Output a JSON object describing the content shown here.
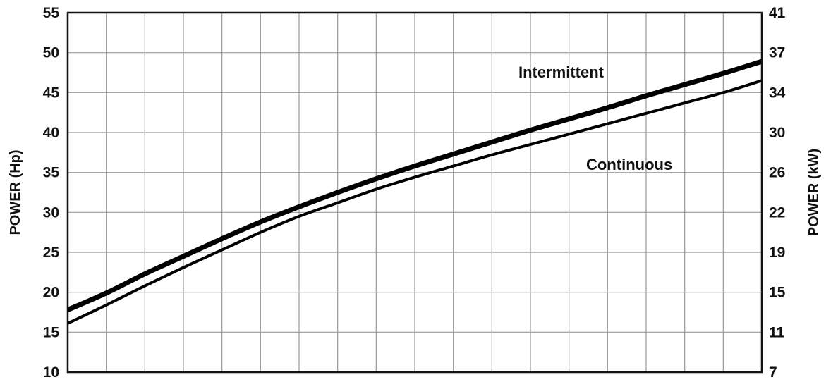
{
  "chart_data": {
    "type": "line",
    "title": "",
    "xlabel": "",
    "ylabel": "POWER (Hp)",
    "ylabel_right": "POWER (kW)",
    "ylim": [
      10,
      55
    ],
    "yticks_left": [
      "10",
      "15",
      "20",
      "25",
      "30",
      "35",
      "40",
      "45",
      "50",
      "55"
    ],
    "yticks_right": [
      "7",
      "11",
      "15",
      "19",
      "22",
      "26",
      "30",
      "34",
      "37",
      "41"
    ],
    "x_gridlines": 18,
    "grid": true,
    "series": [
      {
        "name": "Intermittent",
        "line_weight": "heavy",
        "color": "#000000",
        "x": [
          0,
          1,
          2,
          3,
          4,
          5,
          6,
          7,
          8,
          9,
          10,
          11,
          12,
          13,
          14,
          15,
          16,
          17,
          18
        ],
        "values": [
          17.8,
          19.9,
          22.3,
          24.5,
          26.7,
          28.8,
          30.7,
          32.5,
          34.2,
          35.8,
          37.3,
          38.8,
          40.3,
          41.7,
          43.1,
          44.6,
          46.0,
          47.4,
          48.9
        ]
      },
      {
        "name": "Continuous",
        "line_weight": "light",
        "color": "#000000",
        "x": [
          0,
          1,
          2,
          3,
          4,
          5,
          6,
          7,
          8,
          9,
          10,
          11,
          12,
          13,
          14,
          15,
          16,
          17,
          18
        ],
        "values": [
          16.1,
          18.4,
          20.8,
          23.1,
          25.3,
          27.5,
          29.5,
          31.2,
          32.9,
          34.4,
          35.8,
          37.2,
          38.5,
          39.8,
          41.1,
          42.4,
          43.7,
          45.0,
          46.5
        ]
      }
    ]
  }
}
